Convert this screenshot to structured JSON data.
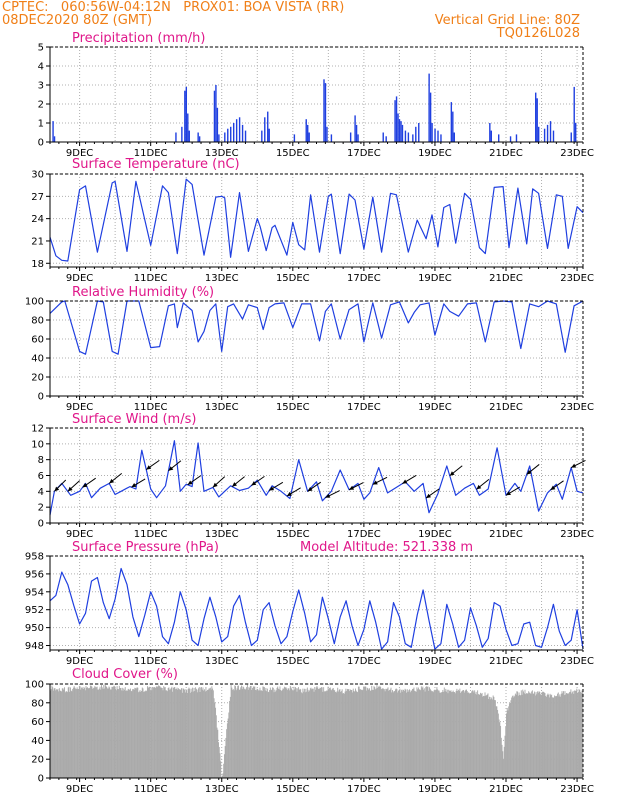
{
  "header": {
    "left1": "CPTEC:   060:56W-04:12N   PROX01: BOA VISTA (RR)",
    "left2": "08DEC2020 80Z (GMT)",
    "right2": "Vertical Grid Line: 80Z",
    "right3": "TQ0126L028"
  },
  "colors": {
    "header": "#f07f17",
    "title": "#e0178a",
    "series": "#1f3fe0",
    "cloud": "#aaaaaa",
    "grid": "#b0b0b0",
    "arrow": "#000000"
  },
  "chart_data": [
    {
      "type": "bar",
      "title": "Precipitation (mm/h)",
      "ylim": [
        0,
        5
      ],
      "yticks": [
        0,
        1,
        2,
        3,
        4,
        5
      ],
      "x_range_hours": [
        0,
        360
      ],
      "x_ticks": [
        "9DEC",
        "11DEC",
        "13DEC",
        "15DEC",
        "17DEC",
        "19DEC",
        "21DEC",
        "23DEC"
      ],
      "x_tick_hours": [
        20,
        68,
        116,
        164,
        212,
        260,
        308,
        356
      ],
      "events": [
        {
          "t": 2,
          "v": 1.1
        },
        {
          "t": 3,
          "v": 0.3
        },
        {
          "t": 85,
          "v": 0.5
        },
        {
          "t": 89,
          "v": 0.8
        },
        {
          "t": 91,
          "v": 2.7
        },
        {
          "t": 92,
          "v": 2.9
        },
        {
          "t": 93,
          "v": 1.5
        },
        {
          "t": 94,
          "v": 0.6
        },
        {
          "t": 100,
          "v": 0.5
        },
        {
          "t": 101,
          "v": 0.3
        },
        {
          "t": 111,
          "v": 2.7
        },
        {
          "t": 112,
          "v": 3.0
        },
        {
          "t": 113,
          "v": 1.8
        },
        {
          "t": 114,
          "v": 0.4
        },
        {
          "t": 118,
          "v": 0.5
        },
        {
          "t": 120,
          "v": 0.7
        },
        {
          "t": 122,
          "v": 0.8
        },
        {
          "t": 124,
          "v": 1.0
        },
        {
          "t": 126,
          "v": 1.2
        },
        {
          "t": 128,
          "v": 1.3
        },
        {
          "t": 130,
          "v": 0.9
        },
        {
          "t": 132,
          "v": 0.6
        },
        {
          "t": 143,
          "v": 0.6
        },
        {
          "t": 145,
          "v": 1.3
        },
        {
          "t": 147,
          "v": 1.6
        },
        {
          "t": 148,
          "v": 0.7
        },
        {
          "t": 165,
          "v": 0.4
        },
        {
          "t": 173,
          "v": 1.2
        },
        {
          "t": 174,
          "v": 0.9
        },
        {
          "t": 175,
          "v": 0.5
        },
        {
          "t": 185,
          "v": 3.3
        },
        {
          "t": 186,
          "v": 3.1
        },
        {
          "t": 187,
          "v": 0.8
        },
        {
          "t": 190,
          "v": 0.4
        },
        {
          "t": 203,
          "v": 0.5
        },
        {
          "t": 206,
          "v": 1.4
        },
        {
          "t": 207,
          "v": 0.9
        },
        {
          "t": 208,
          "v": 0.4
        },
        {
          "t": 225,
          "v": 0.5
        },
        {
          "t": 227,
          "v": 0.3
        },
        {
          "t": 233,
          "v": 2.2
        },
        {
          "t": 234,
          "v": 2.4
        },
        {
          "t": 235,
          "v": 1.5
        },
        {
          "t": 236,
          "v": 1.2
        },
        {
          "t": 237,
          "v": 1.1
        },
        {
          "t": 238,
          "v": 0.9
        },
        {
          "t": 240,
          "v": 0.6
        },
        {
          "t": 242,
          "v": 0.5
        },
        {
          "t": 245,
          "v": 0.4
        },
        {
          "t": 247,
          "v": 0.8
        },
        {
          "t": 249,
          "v": 1.0
        },
        {
          "t": 256,
          "v": 3.6
        },
        {
          "t": 257,
          "v": 2.6
        },
        {
          "t": 258,
          "v": 1.0
        },
        {
          "t": 260,
          "v": 0.7
        },
        {
          "t": 262,
          "v": 0.6
        },
        {
          "t": 264,
          "v": 0.4
        },
        {
          "t": 271,
          "v": 2.1
        },
        {
          "t": 272,
          "v": 1.6
        },
        {
          "t": 273,
          "v": 0.5
        },
        {
          "t": 297,
          "v": 1.0
        },
        {
          "t": 298,
          "v": 0.6
        },
        {
          "t": 303,
          "v": 0.4
        },
        {
          "t": 311,
          "v": 0.3
        },
        {
          "t": 315,
          "v": 0.4
        },
        {
          "t": 328,
          "v": 2.6
        },
        {
          "t": 329,
          "v": 2.3
        },
        {
          "t": 330,
          "v": 0.8
        },
        {
          "t": 334,
          "v": 0.7
        },
        {
          "t": 336,
          "v": 0.9
        },
        {
          "t": 338,
          "v": 1.1
        },
        {
          "t": 340,
          "v": 0.6
        },
        {
          "t": 352,
          "v": 0.5
        },
        {
          "t": 354,
          "v": 2.9
        },
        {
          "t": 355,
          "v": 1.0
        }
      ]
    },
    {
      "type": "line",
      "title": "Surface Temperature (nC)",
      "ylim": [
        17.5,
        30
      ],
      "yticks": [
        18,
        21,
        24,
        27,
        30
      ],
      "x_range_hours": [
        0,
        360
      ],
      "x_ticks": [
        "9DEC",
        "11DEC",
        "13DEC",
        "15DEC",
        "17DEC",
        "19DEC",
        "21DEC",
        "23DEC"
      ],
      "x_tick_hours": [
        20,
        68,
        116,
        164,
        212,
        260,
        308,
        356
      ],
      "x": [
        0,
        4,
        8,
        12,
        20,
        24,
        32,
        42,
        44,
        52,
        58,
        68,
        76,
        80,
        86,
        92,
        96,
        104,
        112,
        116,
        118,
        122,
        128,
        134,
        140,
        142,
        146,
        150,
        152,
        160,
        164,
        168,
        172,
        176,
        182,
        188,
        190,
        196,
        202,
        206,
        212,
        218,
        224,
        230,
        234,
        242,
        248,
        254,
        258,
        262,
        266,
        270,
        274,
        280,
        284,
        290,
        294,
        300,
        306,
        310,
        316,
        322,
        326,
        330,
        336,
        342,
        346,
        350,
        356,
        360
      ],
      "y": [
        21.5,
        19.0,
        18.4,
        18.3,
        27.9,
        28.4,
        19.5,
        28.8,
        29.0,
        19.6,
        29.0,
        20.4,
        28.4,
        27.5,
        19.3,
        29.3,
        28.6,
        19.1,
        26.9,
        27.0,
        26.8,
        18.8,
        27.5,
        19.6,
        24.0,
        22.9,
        19.7,
        22.8,
        23.1,
        19.1,
        23.5,
        20.5,
        19.8,
        27.2,
        19.5,
        27.0,
        27.3,
        19.3,
        27.3,
        26.5,
        19.9,
        26.9,
        19.5,
        27.4,
        27.2,
        19.5,
        23.8,
        21.3,
        24.5,
        20.2,
        25.5,
        25.9,
        20.7,
        27.4,
        26.6,
        20.1,
        19.3,
        28.2,
        28.3,
        20.1,
        28.1,
        20.6,
        28.0,
        27.4,
        20.0,
        27.2,
        27.0,
        20.0,
        25.6,
        24.8
      ]
    },
    {
      "type": "line",
      "title": "Relative Humidity (%)",
      "ylim": [
        0,
        100
      ],
      "yticks": [
        0,
        20,
        40,
        60,
        80,
        100
      ],
      "x_range_hours": [
        0,
        360
      ],
      "x_ticks": [
        "9DEC",
        "11DEC",
        "13DEC",
        "15DEC",
        "17DEC",
        "19DEC",
        "21DEC",
        "23DEC"
      ],
      "x_tick_hours": [
        20,
        68,
        116,
        164,
        212,
        260,
        308,
        356
      ],
      "x": [
        0,
        8,
        10,
        20,
        24,
        32,
        36,
        42,
        46,
        52,
        60,
        68,
        74,
        80,
        84,
        86,
        90,
        96,
        100,
        104,
        108,
        112,
        116,
        120,
        124,
        130,
        134,
        140,
        144,
        148,
        152,
        158,
        164,
        170,
        176,
        182,
        186,
        190,
        196,
        202,
        208,
        212,
        218,
        224,
        230,
        236,
        242,
        246,
        250,
        256,
        260,
        266,
        270,
        276,
        282,
        288,
        294,
        300,
        306,
        312,
        318,
        324,
        330,
        336,
        342,
        348,
        354,
        360
      ],
      "y": [
        87,
        99,
        100,
        47,
        44,
        100,
        99,
        47,
        44,
        100,
        100,
        51,
        52,
        95,
        97,
        72,
        98,
        90,
        57,
        68,
        90,
        97,
        47,
        94,
        97,
        81,
        96,
        93,
        70,
        93,
        97,
        98,
        72,
        97,
        97,
        58,
        89,
        97,
        60,
        91,
        97,
        57,
        98,
        61,
        96,
        99,
        77,
        88,
        96,
        98,
        64,
        97,
        89,
        84,
        97,
        98,
        57,
        99,
        100,
        99,
        50,
        97,
        94,
        100,
        97,
        46,
        95,
        100
      ]
    },
    {
      "type": "line",
      "title": "Surface Wind (m/s)",
      "ylim": [
        0,
        12
      ],
      "yticks": [
        0,
        2,
        4,
        6,
        8,
        10,
        12
      ],
      "x_range_hours": [
        0,
        360
      ],
      "x_ticks": [
        "9DEC",
        "11DEC",
        "13DEC",
        "15DEC",
        "17DEC",
        "19DEC",
        "21DEC",
        "23DEC"
      ],
      "x_tick_hours": [
        20,
        68,
        116,
        164,
        212,
        260,
        308,
        356
      ],
      "x": [
        0,
        3,
        8,
        14,
        20,
        24,
        28,
        34,
        40,
        44,
        48,
        54,
        58,
        62,
        68,
        72,
        74,
        78,
        84,
        88,
        92,
        96,
        100,
        104,
        110,
        114,
        118,
        122,
        128,
        134,
        140,
        146,
        150,
        156,
        162,
        168,
        174,
        180,
        184,
        190,
        196,
        202,
        208,
        212,
        216,
        222,
        228,
        234,
        240,
        246,
        252,
        256,
        262,
        268,
        274,
        280,
        286,
        290,
        296,
        302,
        308,
        314,
        318,
        324,
        330,
        336,
        342,
        346,
        352,
        356,
        360
      ],
      "y": [
        1.0,
        4.0,
        5.0,
        3.5,
        4.0,
        5.0,
        3.2,
        4.4,
        5.0,
        3.6,
        4.0,
        4.6,
        4.3,
        9.2,
        4.3,
        3.2,
        3.7,
        4.7,
        10.4,
        4.0,
        4.9,
        4.6,
        10.1,
        4.0,
        4.5,
        3.3,
        4.0,
        4.7,
        4.1,
        4.4,
        5.4,
        3.5,
        4.7,
        4.0,
        3.1,
        8.0,
        4.0,
        5.2,
        2.8,
        4.0,
        6.7,
        4.2,
        5.0,
        3.0,
        3.8,
        7.0,
        3.8,
        4.5,
        5.2,
        4.0,
        5.0,
        1.3,
        3.7,
        7.2,
        3.5,
        4.4,
        5.0,
        3.5,
        4.3,
        9.5,
        3.5,
        5.0,
        4.0,
        7.2,
        1.5,
        3.8,
        4.9,
        3.0,
        7.0,
        4.0,
        3.8
      ],
      "arrows": [
        {
          "t": 3,
          "dx": 1,
          "dy": -1
        },
        {
          "t": 12,
          "dx": 1,
          "dy": -0.9
        },
        {
          "t": 22,
          "dx": 1,
          "dy": -0.7
        },
        {
          "t": 40,
          "dx": 1,
          "dy": -0.8
        },
        {
          "t": 55,
          "dx": 1,
          "dy": -0.6
        },
        {
          "t": 65,
          "dx": 1,
          "dy": -0.7
        },
        {
          "t": 80,
          "dx": 1,
          "dy": -0.8
        },
        {
          "t": 93,
          "dx": 1,
          "dy": -0.7
        },
        {
          "t": 110,
          "dx": 1,
          "dy": -0.9
        },
        {
          "t": 123,
          "dx": 1,
          "dy": -0.8
        },
        {
          "t": 136,
          "dx": 1,
          "dy": -0.7
        },
        {
          "t": 148,
          "dx": 1,
          "dy": -0.6
        },
        {
          "t": 160,
          "dx": 1,
          "dy": -0.6
        },
        {
          "t": 174,
          "dx": 1,
          "dy": -0.7
        },
        {
          "t": 186,
          "dx": 1,
          "dy": -0.5
        },
        {
          "t": 202,
          "dx": 1,
          "dy": -0.5
        },
        {
          "t": 218,
          "dx": 1,
          "dy": -0.5
        },
        {
          "t": 238,
          "dx": 1,
          "dy": -0.6
        },
        {
          "t": 254,
          "dx": 1,
          "dy": -0.7
        },
        {
          "t": 270,
          "dx": 1,
          "dy": -0.8
        },
        {
          "t": 288,
          "dx": 1,
          "dy": -0.8
        },
        {
          "t": 308,
          "dx": 1,
          "dy": -0.6
        },
        {
          "t": 322,
          "dx": 1,
          "dy": -0.8
        },
        {
          "t": 338,
          "dx": 1,
          "dy": -0.7
        },
        {
          "t": 352,
          "dx": 1,
          "dy": -0.5
        }
      ]
    },
    {
      "type": "line",
      "title": "Surface Pressure (hPa)",
      "subtitle": "Model Altitude: 521.338  m",
      "ylim": [
        947.5,
        958
      ],
      "yticks": [
        948,
        950,
        952,
        954,
        956,
        958
      ],
      "x_range_hours": [
        0,
        360
      ],
      "x_ticks": [
        "9DEC",
        "11DEC",
        "13DEC",
        "15DEC",
        "17DEC",
        "19DEC",
        "21DEC",
        "23DEC"
      ],
      "x_tick_hours": [
        20,
        68,
        116,
        164,
        212,
        260,
        308,
        356
      ],
      "x": [
        0,
        4,
        8,
        12,
        16,
        20,
        24,
        28,
        32,
        36,
        40,
        44,
        48,
        52,
        56,
        60,
        64,
        68,
        72,
        76,
        80,
        84,
        88,
        92,
        96,
        100,
        104,
        108,
        112,
        116,
        120,
        124,
        128,
        132,
        136,
        140,
        144,
        148,
        152,
        156,
        160,
        164,
        168,
        172,
        176,
        180,
        184,
        188,
        192,
        196,
        200,
        204,
        208,
        212,
        216,
        220,
        224,
        228,
        232,
        236,
        240,
        244,
        248,
        252,
        256,
        260,
        264,
        268,
        272,
        276,
        280,
        284,
        288,
        292,
        296,
        300,
        304,
        308,
        312,
        316,
        320,
        324,
        328,
        332,
        336,
        340,
        344,
        348,
        352,
        356,
        360
      ],
      "y": [
        953.0,
        953.6,
        956.2,
        954.8,
        952.5,
        950.4,
        951.6,
        955.2,
        955.6,
        952.8,
        951.0,
        953.2,
        956.6,
        954.8,
        951.2,
        949.0,
        951.4,
        954.0,
        952.4,
        949.0,
        948.2,
        950.6,
        954.0,
        952.0,
        948.6,
        948.0,
        951.0,
        953.4,
        951.2,
        948.4,
        949.0,
        952.4,
        953.6,
        950.6,
        948.0,
        948.6,
        952.0,
        952.8,
        950.2,
        948.2,
        949.0,
        951.8,
        954.2,
        951.6,
        948.4,
        949.2,
        953.4,
        951.0,
        948.2,
        951.2,
        953.0,
        950.2,
        948.0,
        949.8,
        953.0,
        950.6,
        947.6,
        948.4,
        952.8,
        951.2,
        948.2,
        947.8,
        951.4,
        954.2,
        950.8,
        947.6,
        948.2,
        952.6,
        950.4,
        947.8,
        948.6,
        952.2,
        950.2,
        947.8,
        948.8,
        952.8,
        952.4,
        949.8,
        948.0,
        948.2,
        950.4,
        950.6,
        948.0,
        947.8,
        950.0,
        952.6,
        949.6,
        948.0,
        948.6,
        952.0,
        947.6
      ]
    },
    {
      "type": "bar",
      "title": "Cloud Cover (%)",
      "ylim": [
        0,
        100
      ],
      "yticks": [
        0,
        20,
        40,
        60,
        80,
        100
      ],
      "x_range_hours": [
        0,
        360
      ],
      "x_ticks": [
        "9DEC",
        "11DEC",
        "13DEC",
        "15DEC",
        "17DEC",
        "19DEC",
        "21DEC",
        "23DEC"
      ],
      "x_tick_hours": [
        20,
        68,
        116,
        164,
        212,
        260,
        308,
        356
      ],
      "x": [
        0,
        10,
        20,
        30,
        40,
        50,
        60,
        70,
        80,
        90,
        100,
        110,
        116,
        122,
        130,
        140,
        150,
        160,
        170,
        180,
        190,
        200,
        210,
        220,
        230,
        240,
        250,
        260,
        270,
        280,
        290,
        300,
        304,
        306,
        308,
        312,
        320,
        330,
        340,
        350,
        360
      ],
      "y": [
        96,
        94,
        96,
        95,
        97,
        95,
        94,
        96,
        95,
        93,
        94,
        95,
        2,
        96,
        97,
        95,
        94,
        96,
        93,
        95,
        94,
        92,
        95,
        96,
        94,
        93,
        95,
        94,
        93,
        92,
        90,
        85,
        55,
        18,
        70,
        88,
        92,
        90,
        88,
        91,
        94
      ]
    }
  ]
}
